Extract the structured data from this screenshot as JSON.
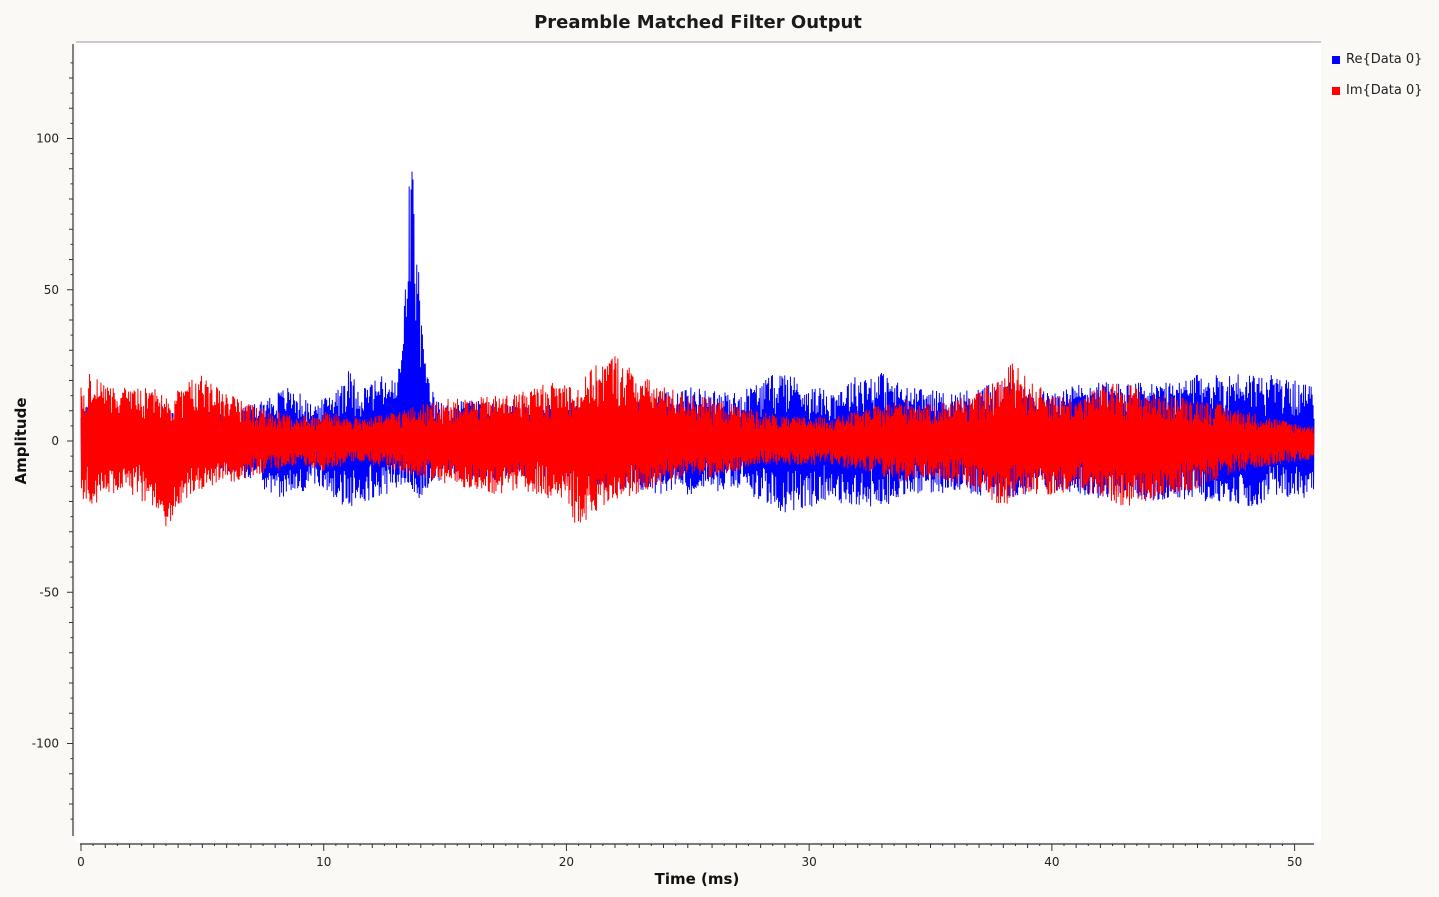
{
  "chart_data": {
    "type": "line",
    "title": "Preamble Matched Filter Output",
    "xlabel": "Time (ms)",
    "ylabel": "Amplitude",
    "xlim": [
      0,
      50.8
    ],
    "ylim": [
      -130,
      130
    ],
    "x_ticks": [
      0,
      10,
      20,
      30,
      40,
      50
    ],
    "y_ticks": [
      -100,
      -50,
      0,
      50,
      100
    ],
    "grid": false,
    "legend_position": "top-right",
    "series": [
      {
        "name": "Re{Data 0}",
        "color": "#0000ff",
        "envelope": {
          "x": [
            0,
            1,
            2,
            3,
            4,
            5,
            6,
            7,
            8,
            8.5,
            9,
            9.5,
            10,
            10.5,
            11,
            11.5,
            12,
            12.5,
            13,
            13.3,
            13.5,
            13.6,
            13.7,
            13.9,
            14.2,
            14.6,
            15,
            16,
            17,
            18,
            19,
            20,
            21,
            22,
            23,
            24,
            25,
            26,
            27,
            28,
            29,
            30,
            31,
            32,
            33,
            34,
            35,
            36,
            37,
            38,
            39,
            40,
            41,
            42,
            43,
            44,
            45,
            46,
            47,
            48,
            49,
            50,
            50.8
          ],
          "upper": [
            12,
            10,
            9,
            9,
            10,
            10,
            10,
            12,
            16,
            18,
            16,
            12,
            14,
            18,
            24,
            18,
            20,
            22,
            20,
            40,
            92,
            94,
            88,
            60,
            24,
            14,
            12,
            14,
            13,
            12,
            12,
            13,
            14,
            14,
            14,
            16,
            18,
            17,
            16,
            20,
            24,
            18,
            17,
            22,
            23,
            18,
            17,
            16,
            18,
            20,
            18,
            16,
            19,
            20,
            19,
            20,
            19,
            22,
            22,
            23,
            22,
            20,
            18
          ],
          "lower": [
            -12,
            -10,
            -9,
            -9,
            -10,
            -10,
            -10,
            -14,
            -18,
            -20,
            -18,
            -14,
            -16,
            -20,
            -24,
            -20,
            -20,
            -18,
            -16,
            -14,
            -14,
            -14,
            -18,
            -20,
            -16,
            -14,
            -12,
            -13,
            -13,
            -12,
            -12,
            -14,
            -15,
            -16,
            -16,
            -18,
            -18,
            -17,
            -16,
            -20,
            -24,
            -22,
            -20,
            -22,
            -22,
            -18,
            -18,
            -17,
            -18,
            -19,
            -18,
            -16,
            -18,
            -19,
            -18,
            -20,
            -19,
            -20,
            -20,
            -22,
            -20,
            -18,
            -20
          ]
        }
      },
      {
        "name": "Im{Data 0}",
        "color": "#ff0000",
        "envelope": {
          "x": [
            0,
            0.5,
            1,
            2,
            3,
            3.5,
            4,
            5,
            6,
            7,
            8,
            9,
            10,
            11,
            12,
            13,
            14,
            15,
            16,
            17,
            18,
            19,
            20,
            20.5,
            21,
            22,
            23,
            24,
            25,
            26,
            27,
            28,
            29,
            30,
            31,
            32,
            33,
            34,
            35,
            36,
            37,
            38,
            38.5,
            39,
            40,
            41,
            42,
            43,
            44,
            45,
            46,
            47,
            48,
            49,
            50,
            50.8
          ],
          "upper": [
            18,
            24,
            18,
            18,
            18,
            14,
            18,
            22,
            16,
            12,
            10,
            8,
            10,
            8,
            8,
            10,
            12,
            14,
            14,
            15,
            16,
            19,
            20,
            18,
            24,
            29,
            22,
            18,
            16,
            14,
            12,
            10,
            8,
            8,
            8,
            10,
            12,
            14,
            12,
            14,
            16,
            22,
            28,
            20,
            16,
            14,
            18,
            20,
            16,
            15,
            14,
            12,
            10,
            8,
            6,
            5
          ],
          "lower": [
            -20,
            -22,
            -18,
            -18,
            -22,
            -30,
            -22,
            -16,
            -14,
            -12,
            -10,
            -8,
            -10,
            -8,
            -8,
            -10,
            -12,
            -14,
            -16,
            -18,
            -16,
            -18,
            -22,
            -31,
            -24,
            -20,
            -18,
            -14,
            -12,
            -12,
            -10,
            -8,
            -8,
            -8,
            -8,
            -10,
            -12,
            -14,
            -12,
            -14,
            -18,
            -22,
            -20,
            -18,
            -18,
            -16,
            -20,
            -22,
            -20,
            -18,
            -16,
            -12,
            -10,
            -8,
            -7,
            -6
          ]
        }
      }
    ]
  }
}
